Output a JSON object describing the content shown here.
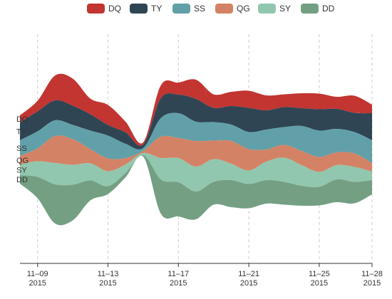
{
  "chart_data": {
    "type": "area",
    "subtype": "themeriver",
    "legend_position": "top-center",
    "grid": "vertical dashed lines at date ticks",
    "x_ticks": [
      {
        "date": "2015-11-09",
        "line1": "11–09",
        "line2": "2015"
      },
      {
        "date": "2015-11-13",
        "line1": "11–13",
        "line2": "2015"
      },
      {
        "date": "2015-11-17",
        "line1": "11–17",
        "line2": "2015"
      },
      {
        "date": "2015-11-21",
        "line1": "11–21",
        "line2": "2015"
      },
      {
        "date": "2015-11-25",
        "line1": "11–25",
        "line2": "2015"
      },
      {
        "date": "2015-11-28",
        "line1": "11–28",
        "line2": "2015"
      }
    ],
    "x": [
      "2015-11-08",
      "2015-11-09",
      "2015-11-10",
      "2015-11-11",
      "2015-11-12",
      "2015-11-13",
      "2015-11-14",
      "2015-11-15",
      "2015-11-16",
      "2015-11-17",
      "2015-11-18",
      "2015-11-19",
      "2015-11-20",
      "2015-11-21",
      "2015-11-22",
      "2015-11-23",
      "2015-11-24",
      "2015-11-25",
      "2015-11-26",
      "2015-11-27",
      "2015-11-28"
    ],
    "series": [
      {
        "name": "DQ",
        "color": "#c23531",
        "values": [
          10,
          15,
          35,
          38,
          22,
          28,
          15,
          3,
          18,
          17,
          27,
          19,
          20,
          24,
          21,
          18,
          21,
          22,
          17,
          24,
          12
        ]
      },
      {
        "name": "TY",
        "color": "#2f4554",
        "values": [
          25,
          28,
          28,
          27,
          23,
          15,
          16,
          5,
          28,
          26,
          32,
          20,
          26,
          34,
          27,
          28,
          25,
          30,
          28,
          27,
          38
        ]
      },
      {
        "name": "SS",
        "color": "#61a0a8",
        "values": [
          22,
          24,
          22,
          20,
          26,
          32,
          20,
          4,
          26,
          35,
          27,
          26,
          23,
          24,
          28,
          25,
          35,
          37,
          33,
          30,
          32
        ]
      },
      {
        "name": "QG",
        "color": "#d48265",
        "values": [
          12,
          18,
          38,
          36,
          20,
          18,
          9,
          3,
          30,
          28,
          36,
          26,
          32,
          30,
          17,
          18,
          20,
          21,
          18,
          19,
          12
        ]
      },
      {
        "name": "SY",
        "color": "#91c7ae",
        "values": [
          15,
          22,
          30,
          28,
          24,
          21,
          12,
          3,
          30,
          34,
          35,
          32,
          23,
          19,
          26,
          34,
          29,
          21,
          20,
          21,
          12
        ]
      },
      {
        "name": "DD",
        "color": "#749f83",
        "values": [
          12,
          30,
          55,
          50,
          28,
          11,
          6,
          2,
          48,
          48,
          39,
          32,
          38,
          34,
          33,
          32,
          28,
          26,
          32,
          30,
          20
        ]
      }
    ]
  }
}
